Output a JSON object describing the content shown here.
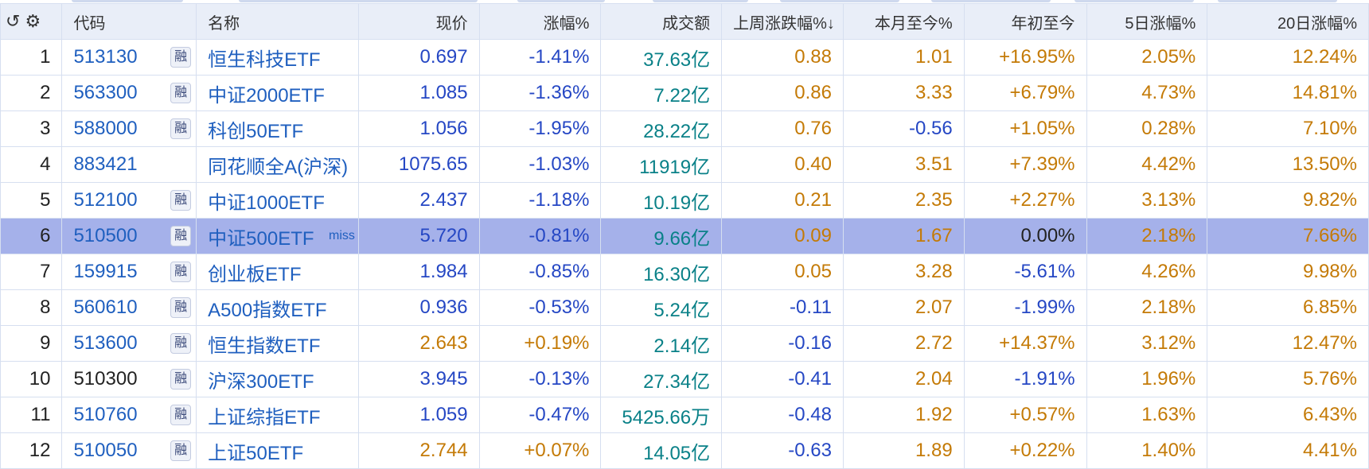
{
  "headers": {
    "code": "代码",
    "name": "名称",
    "price": "现价",
    "change_pct": "涨幅%",
    "turnover": "成交额",
    "last_week": "上周涨跌幅%↓",
    "mtd": "本月至今%",
    "ytd": "年初至今",
    "d5": "5日涨幅%",
    "d20": "20日涨幅%"
  },
  "badge_label": "融",
  "rows": [
    {
      "idx": "1",
      "code": "513130",
      "name": "恒生科技ETF",
      "price": "0.697",
      "change": "-1.41%",
      "turnover": "37.63亿",
      "lastweek": "0.88",
      "mtd": "1.01",
      "ytd": "+16.95%",
      "d5": "2.05%",
      "d20": "12.24%"
    },
    {
      "idx": "2",
      "code": "563300",
      "name": "中证2000ETF",
      "price": "1.085",
      "change": "-1.36%",
      "turnover": "7.22亿",
      "lastweek": "0.86",
      "mtd": "3.33",
      "ytd": "+6.79%",
      "d5": "4.73%",
      "d20": "14.81%"
    },
    {
      "idx": "3",
      "code": "588000",
      "name": "科创50ETF",
      "price": "1.056",
      "change": "-1.95%",
      "turnover": "28.22亿",
      "lastweek": "0.76",
      "mtd": "-0.56",
      "ytd": "+1.05%",
      "d5": "0.28%",
      "d20": "7.10%"
    },
    {
      "idx": "4",
      "code": "883421",
      "name": "同花顺全A(沪深)",
      "price": "1075.65",
      "change": "-1.03%",
      "turnover": "11919亿",
      "lastweek": "0.40",
      "mtd": "3.51",
      "ytd": "+7.39%",
      "d5": "4.42%",
      "d20": "13.50%"
    },
    {
      "idx": "5",
      "code": "512100",
      "name": "中证1000ETF",
      "price": "2.437",
      "change": "-1.18%",
      "turnover": "10.19亿",
      "lastweek": "0.21",
      "mtd": "2.35",
      "ytd": "+2.27%",
      "d5": "3.13%",
      "d20": "9.82%"
    },
    {
      "idx": "6",
      "code": "510500",
      "name": "中证500ETF",
      "miss": "miss",
      "price": "5.720",
      "change": "-0.81%",
      "turnover": "9.66亿",
      "lastweek": "0.09",
      "mtd": "1.67",
      "ytd": "0.00%",
      "d5": "2.18%",
      "d20": "7.66%"
    },
    {
      "idx": "7",
      "code": "159915",
      "name": "创业板ETF",
      "price": "1.984",
      "change": "-0.85%",
      "turnover": "16.30亿",
      "lastweek": "0.05",
      "mtd": "3.28",
      "ytd": "-5.61%",
      "d5": "4.26%",
      "d20": "9.98%"
    },
    {
      "idx": "8",
      "code": "560610",
      "name": "A500指数ETF",
      "price": "0.936",
      "change": "-0.53%",
      "turnover": "5.24亿",
      "lastweek": "-0.11",
      "mtd": "2.07",
      "ytd": "-1.99%",
      "d5": "2.18%",
      "d20": "6.85%"
    },
    {
      "idx": "9",
      "code": "513600",
      "name": "恒生指数ETF",
      "price": "2.643",
      "change": "+0.19%",
      "turnover": "2.14亿",
      "lastweek": "-0.16",
      "mtd": "2.72",
      "ytd": "+14.37%",
      "d5": "3.12%",
      "d20": "12.47%"
    },
    {
      "idx": "10",
      "code": "510300",
      "name": "沪深300ETF",
      "price": "3.945",
      "change": "-0.13%",
      "turnover": "27.34亿",
      "lastweek": "-0.41",
      "mtd": "2.04",
      "ytd": "-1.91%",
      "d5": "1.96%",
      "d20": "5.76%"
    },
    {
      "idx": "11",
      "code": "510760",
      "name": "上证综指ETF",
      "price": "1.059",
      "change": "-0.47%",
      "turnover": "5425.66万",
      "lastweek": "-0.48",
      "mtd": "1.92",
      "ytd": "+0.57%",
      "d5": "1.63%",
      "d20": "6.43%"
    },
    {
      "idx": "12",
      "code": "510050",
      "name": "上证50ETF",
      "price": "2.744",
      "change": "+0.07%",
      "turnover": "14.05亿",
      "lastweek": "-0.63",
      "mtd": "1.89",
      "ytd": "+0.22%",
      "d5": "1.40%",
      "d20": "4.41%"
    }
  ]
}
